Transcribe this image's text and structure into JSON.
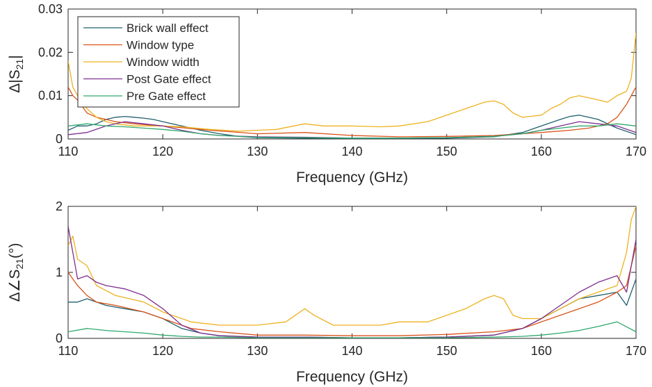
{
  "chart_data": [
    {
      "type": "line",
      "xlabel": "Frequency (GHz)",
      "ylabel_parts": {
        "prefix": "Δ|S",
        "sub": "21",
        "suffix": "|"
      },
      "xlim": [
        110,
        170
      ],
      "ylim": [
        0,
        0.03
      ],
      "xticks": [
        110,
        120,
        130,
        140,
        150,
        160,
        170
      ],
      "yticks": [
        0,
        0.01,
        0.02,
        0.03
      ],
      "ytick_labels": [
        "0",
        "0.01",
        "0.02",
        "0.03"
      ],
      "grid": false,
      "legend": "top-left",
      "series": [
        {
          "name": "Brick wall effect",
          "color": "#1f5f6e",
          "x": [
            110,
            111,
            112,
            113,
            114,
            115,
            116,
            117,
            118,
            119,
            120,
            122,
            124,
            126,
            128,
            130,
            135,
            140,
            145,
            150,
            155,
            158,
            160,
            162,
            163,
            164,
            165,
            166,
            168,
            170
          ],
          "y": [
            0.002,
            0.003,
            0.003,
            0.0035,
            0.0045,
            0.005,
            0.0052,
            0.005,
            0.0048,
            0.0045,
            0.004,
            0.003,
            0.002,
            0.0012,
            0.0006,
            0.0003,
            0.0002,
            0.0001,
            0.0001,
            0.0002,
            0.0005,
            0.0015,
            0.003,
            0.0045,
            0.0052,
            0.0055,
            0.005,
            0.0045,
            0.0025,
            0.001
          ]
        },
        {
          "name": "Window type",
          "color": "#d95319",
          "x": [
            110,
            110.5,
            111,
            112,
            113,
            114,
            115,
            117,
            120,
            125,
            130,
            135,
            140,
            145,
            150,
            155,
            160,
            163,
            165,
            167,
            168,
            169,
            170
          ],
          "y": [
            0.012,
            0.01,
            0.009,
            0.006,
            0.005,
            0.0045,
            0.004,
            0.0035,
            0.003,
            0.002,
            0.0012,
            0.0015,
            0.0008,
            0.0005,
            0.0006,
            0.0008,
            0.0015,
            0.002,
            0.0025,
            0.0035,
            0.005,
            0.008,
            0.012
          ]
        },
        {
          "name": "Window width",
          "color": "#edb120",
          "x": [
            110,
            110.5,
            111,
            112,
            113,
            114,
            115,
            117,
            120,
            122,
            125,
            128,
            130,
            132,
            135,
            137,
            140,
            143,
            145,
            148,
            150,
            152,
            154,
            155,
            156,
            157,
            158,
            160,
            161,
            162,
            163,
            164,
            165,
            166,
            167,
            168,
            169,
            169.5,
            170
          ],
          "y": [
            0.018,
            0.012,
            0.01,
            0.007,
            0.005,
            0.004,
            0.0035,
            0.003,
            0.003,
            0.0028,
            0.0022,
            0.0018,
            0.002,
            0.0022,
            0.0035,
            0.003,
            0.003,
            0.0028,
            0.003,
            0.004,
            0.0055,
            0.007,
            0.0085,
            0.0088,
            0.008,
            0.006,
            0.005,
            0.0055,
            0.007,
            0.008,
            0.0095,
            0.01,
            0.0095,
            0.009,
            0.0085,
            0.01,
            0.011,
            0.014,
            0.0245
          ]
        },
        {
          "name": "Post Gate effect",
          "color": "#7e2f8e",
          "x": [
            110,
            112,
            114,
            116,
            118,
            120,
            122,
            124,
            126,
            130,
            135,
            140,
            145,
            150,
            155,
            158,
            160,
            162,
            164,
            166,
            168,
            170
          ],
          "y": [
            0.001,
            0.0015,
            0.003,
            0.004,
            0.0035,
            0.003,
            0.002,
            0.0012,
            0.0008,
            0.0005,
            0.0004,
            0.0002,
            0.0002,
            0.0003,
            0.0006,
            0.0012,
            0.002,
            0.003,
            0.004,
            0.0035,
            0.003,
            0.0015
          ]
        },
        {
          "name": "Pre Gate effect",
          "color": "#2ea86b",
          "x": [
            110,
            112,
            114,
            116,
            118,
            120,
            122,
            124,
            126,
            130,
            135,
            140,
            145,
            150,
            155,
            158,
            160,
            162,
            164,
            166,
            168,
            170
          ],
          "y": [
            0.003,
            0.0035,
            0.003,
            0.0028,
            0.0025,
            0.0022,
            0.0018,
            0.0012,
            0.0008,
            0.0004,
            0.0003,
            0.0002,
            0.0002,
            0.0003,
            0.0006,
            0.0012,
            0.002,
            0.0025,
            0.003,
            0.003,
            0.0035,
            0.003
          ]
        }
      ]
    },
    {
      "type": "line",
      "xlabel": "Frequency (GHz)",
      "ylabel_parts": {
        "prefix": "Δ∠S",
        "sub": "21",
        "suffix": "(°)"
      },
      "xlim": [
        110,
        170
      ],
      "ylim": [
        0,
        2
      ],
      "xticks": [
        110,
        120,
        130,
        140,
        150,
        160,
        170
      ],
      "yticks": [
        0,
        1,
        2
      ],
      "ytick_labels": [
        "0",
        "1",
        "2"
      ],
      "grid": false,
      "series": [
        {
          "name": "Brick wall effect",
          "color": "#1f5f6e",
          "x": [
            110,
            111,
            112,
            113,
            114,
            116,
            118,
            120,
            122,
            124,
            126,
            130,
            135,
            140,
            145,
            150,
            155,
            158,
            160,
            162,
            164,
            166,
            168,
            169,
            170
          ],
          "y": [
            0.55,
            0.55,
            0.6,
            0.55,
            0.5,
            0.45,
            0.4,
            0.3,
            0.15,
            0.08,
            0.04,
            0.02,
            0.02,
            0.01,
            0.01,
            0.02,
            0.05,
            0.15,
            0.3,
            0.45,
            0.6,
            0.65,
            0.7,
            0.5,
            0.9
          ]
        },
        {
          "name": "Window type",
          "color": "#d95319",
          "x": [
            110,
            111,
            112,
            113,
            115,
            118,
            120,
            123,
            126,
            130,
            135,
            140,
            145,
            150,
            155,
            158,
            160,
            162,
            164,
            166,
            168,
            169,
            170
          ],
          "y": [
            1.0,
            0.8,
            0.65,
            0.55,
            0.5,
            0.4,
            0.3,
            0.15,
            0.1,
            0.05,
            0.05,
            0.04,
            0.04,
            0.06,
            0.1,
            0.15,
            0.25,
            0.35,
            0.45,
            0.55,
            0.7,
            0.8,
            1.4
          ]
        },
        {
          "name": "Window width",
          "color": "#edb120",
          "x": [
            110,
            110.5,
            111,
            112,
            113,
            115,
            118,
            120,
            123,
            126,
            130,
            133,
            135,
            136,
            138,
            140,
            143,
            145,
            148,
            150,
            152,
            154,
            155,
            156,
            157,
            158,
            160,
            162,
            164,
            166,
            168,
            169,
            169.5,
            170
          ],
          "y": [
            1.4,
            1.55,
            1.2,
            1.1,
            0.8,
            0.65,
            0.55,
            0.4,
            0.25,
            0.2,
            0.2,
            0.25,
            0.45,
            0.35,
            0.2,
            0.2,
            0.2,
            0.25,
            0.25,
            0.35,
            0.45,
            0.6,
            0.65,
            0.6,
            0.35,
            0.3,
            0.3,
            0.45,
            0.6,
            0.7,
            0.8,
            1.3,
            1.8,
            2.0
          ]
        },
        {
          "name": "Post Gate effect",
          "color": "#7e2f8e",
          "x": [
            110,
            111,
            112,
            113,
            114,
            116,
            118,
            120,
            122,
            124,
            126,
            130,
            135,
            140,
            145,
            150,
            155,
            158,
            160,
            162,
            164,
            166,
            168,
            169,
            170
          ],
          "y": [
            1.7,
            0.9,
            0.95,
            0.85,
            0.8,
            0.75,
            0.65,
            0.45,
            0.2,
            0.08,
            0.04,
            0.02,
            0.02,
            0.01,
            0.01,
            0.02,
            0.05,
            0.15,
            0.3,
            0.5,
            0.7,
            0.85,
            0.95,
            0.7,
            1.5
          ]
        },
        {
          "name": "Pre Gate effect",
          "color": "#2ea86b",
          "x": [
            110,
            112,
            114,
            116,
            118,
            120,
            122,
            124,
            126,
            130,
            135,
            140,
            145,
            150,
            155,
            158,
            160,
            162,
            164,
            166,
            168,
            170
          ],
          "y": [
            0.1,
            0.15,
            0.12,
            0.1,
            0.08,
            0.05,
            0.03,
            0.02,
            0.02,
            0.01,
            0.01,
            0.01,
            0.01,
            0.01,
            0.02,
            0.03,
            0.05,
            0.08,
            0.12,
            0.18,
            0.25,
            0.1
          ]
        }
      ]
    }
  ]
}
